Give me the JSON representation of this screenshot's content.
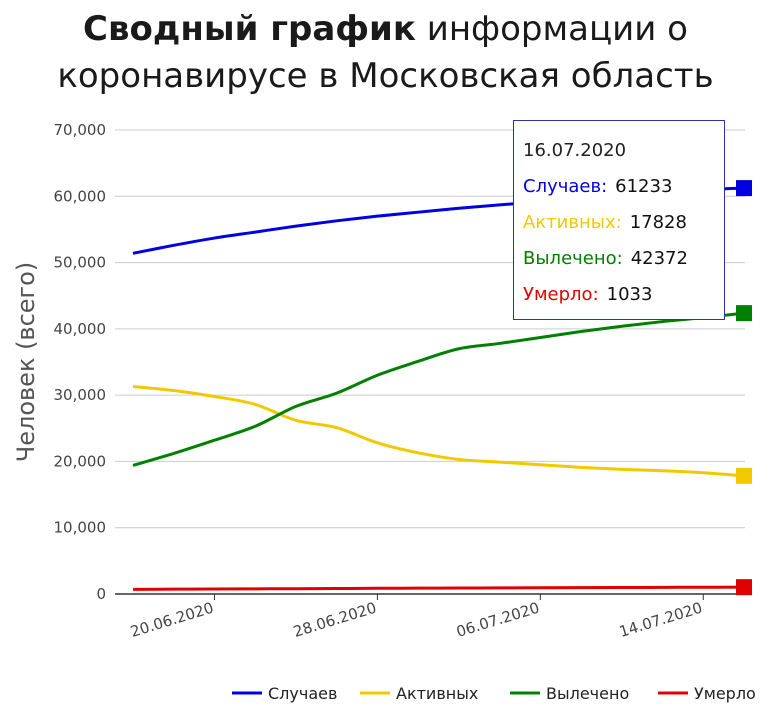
{
  "title": {
    "bold": "Сводный график",
    "rest_line1": "информации о",
    "line2": "коронавирусе в Московская область"
  },
  "tooltip": {
    "date": "16.07.2020",
    "rows": [
      {
        "label": "Случаев:",
        "value": "61233",
        "color": "#0000e0"
      },
      {
        "label": "Активных:",
        "value": "17828",
        "color": "#f2c800"
      },
      {
        "label": "Вылечено:",
        "value": "42372",
        "color": "#008000"
      },
      {
        "label": "Умерло:",
        "value": "1033",
        "color": "#e00000"
      }
    ]
  },
  "chart_data": {
    "type": "line",
    "ylabel": "Человек (всего)",
    "xlabel": "",
    "ylim": [
      0,
      70000
    ],
    "yticks": [
      0,
      10000,
      20000,
      30000,
      40000,
      50000,
      60000,
      70000
    ],
    "ytick_labels": [
      "0",
      "10,000",
      "20,000",
      "30,000",
      "40,000",
      "50,000",
      "60,000",
      "70,000"
    ],
    "x_tick_labels": [
      "20.06.2020",
      "28.06.2020",
      "06.07.2020",
      "14.07.2020"
    ],
    "x": [
      "16.06.2020",
      "18.06.2020",
      "20.06.2020",
      "22.06.2020",
      "24.06.2020",
      "26.06.2020",
      "28.06.2020",
      "30.06.2020",
      "02.07.2020",
      "04.07.2020",
      "06.07.2020",
      "08.07.2020",
      "10.07.2020",
      "12.07.2020",
      "14.07.2020",
      "16.07.2020"
    ],
    "grid": true,
    "legend_position": "bottom-right",
    "series": [
      {
        "name": "Случаев",
        "color": "#0000e0",
        "values": [
          51400,
          52600,
          53700,
          54600,
          55500,
          56300,
          57000,
          57600,
          58200,
          58700,
          59200,
          59700,
          60200,
          60600,
          61000,
          61233
        ]
      },
      {
        "name": "Активных",
        "color": "#f2c800",
        "values": [
          31300,
          30700,
          29800,
          28600,
          26200,
          25100,
          22800,
          21300,
          20300,
          19900,
          19500,
          19100,
          18800,
          18600,
          18300,
          17828
        ]
      },
      {
        "name": "Вылечено",
        "color": "#008000",
        "values": [
          19400,
          21200,
          23200,
          25300,
          28300,
          30300,
          33000,
          35100,
          37000,
          37800,
          38700,
          39600,
          40400,
          41100,
          41700,
          42372
        ]
      },
      {
        "name": "Умерло",
        "color": "#e00000",
        "values": [
          700,
          730,
          760,
          780,
          800,
          830,
          860,
          880,
          900,
          920,
          940,
          960,
          980,
          1000,
          1020,
          1033
        ]
      }
    ]
  }
}
